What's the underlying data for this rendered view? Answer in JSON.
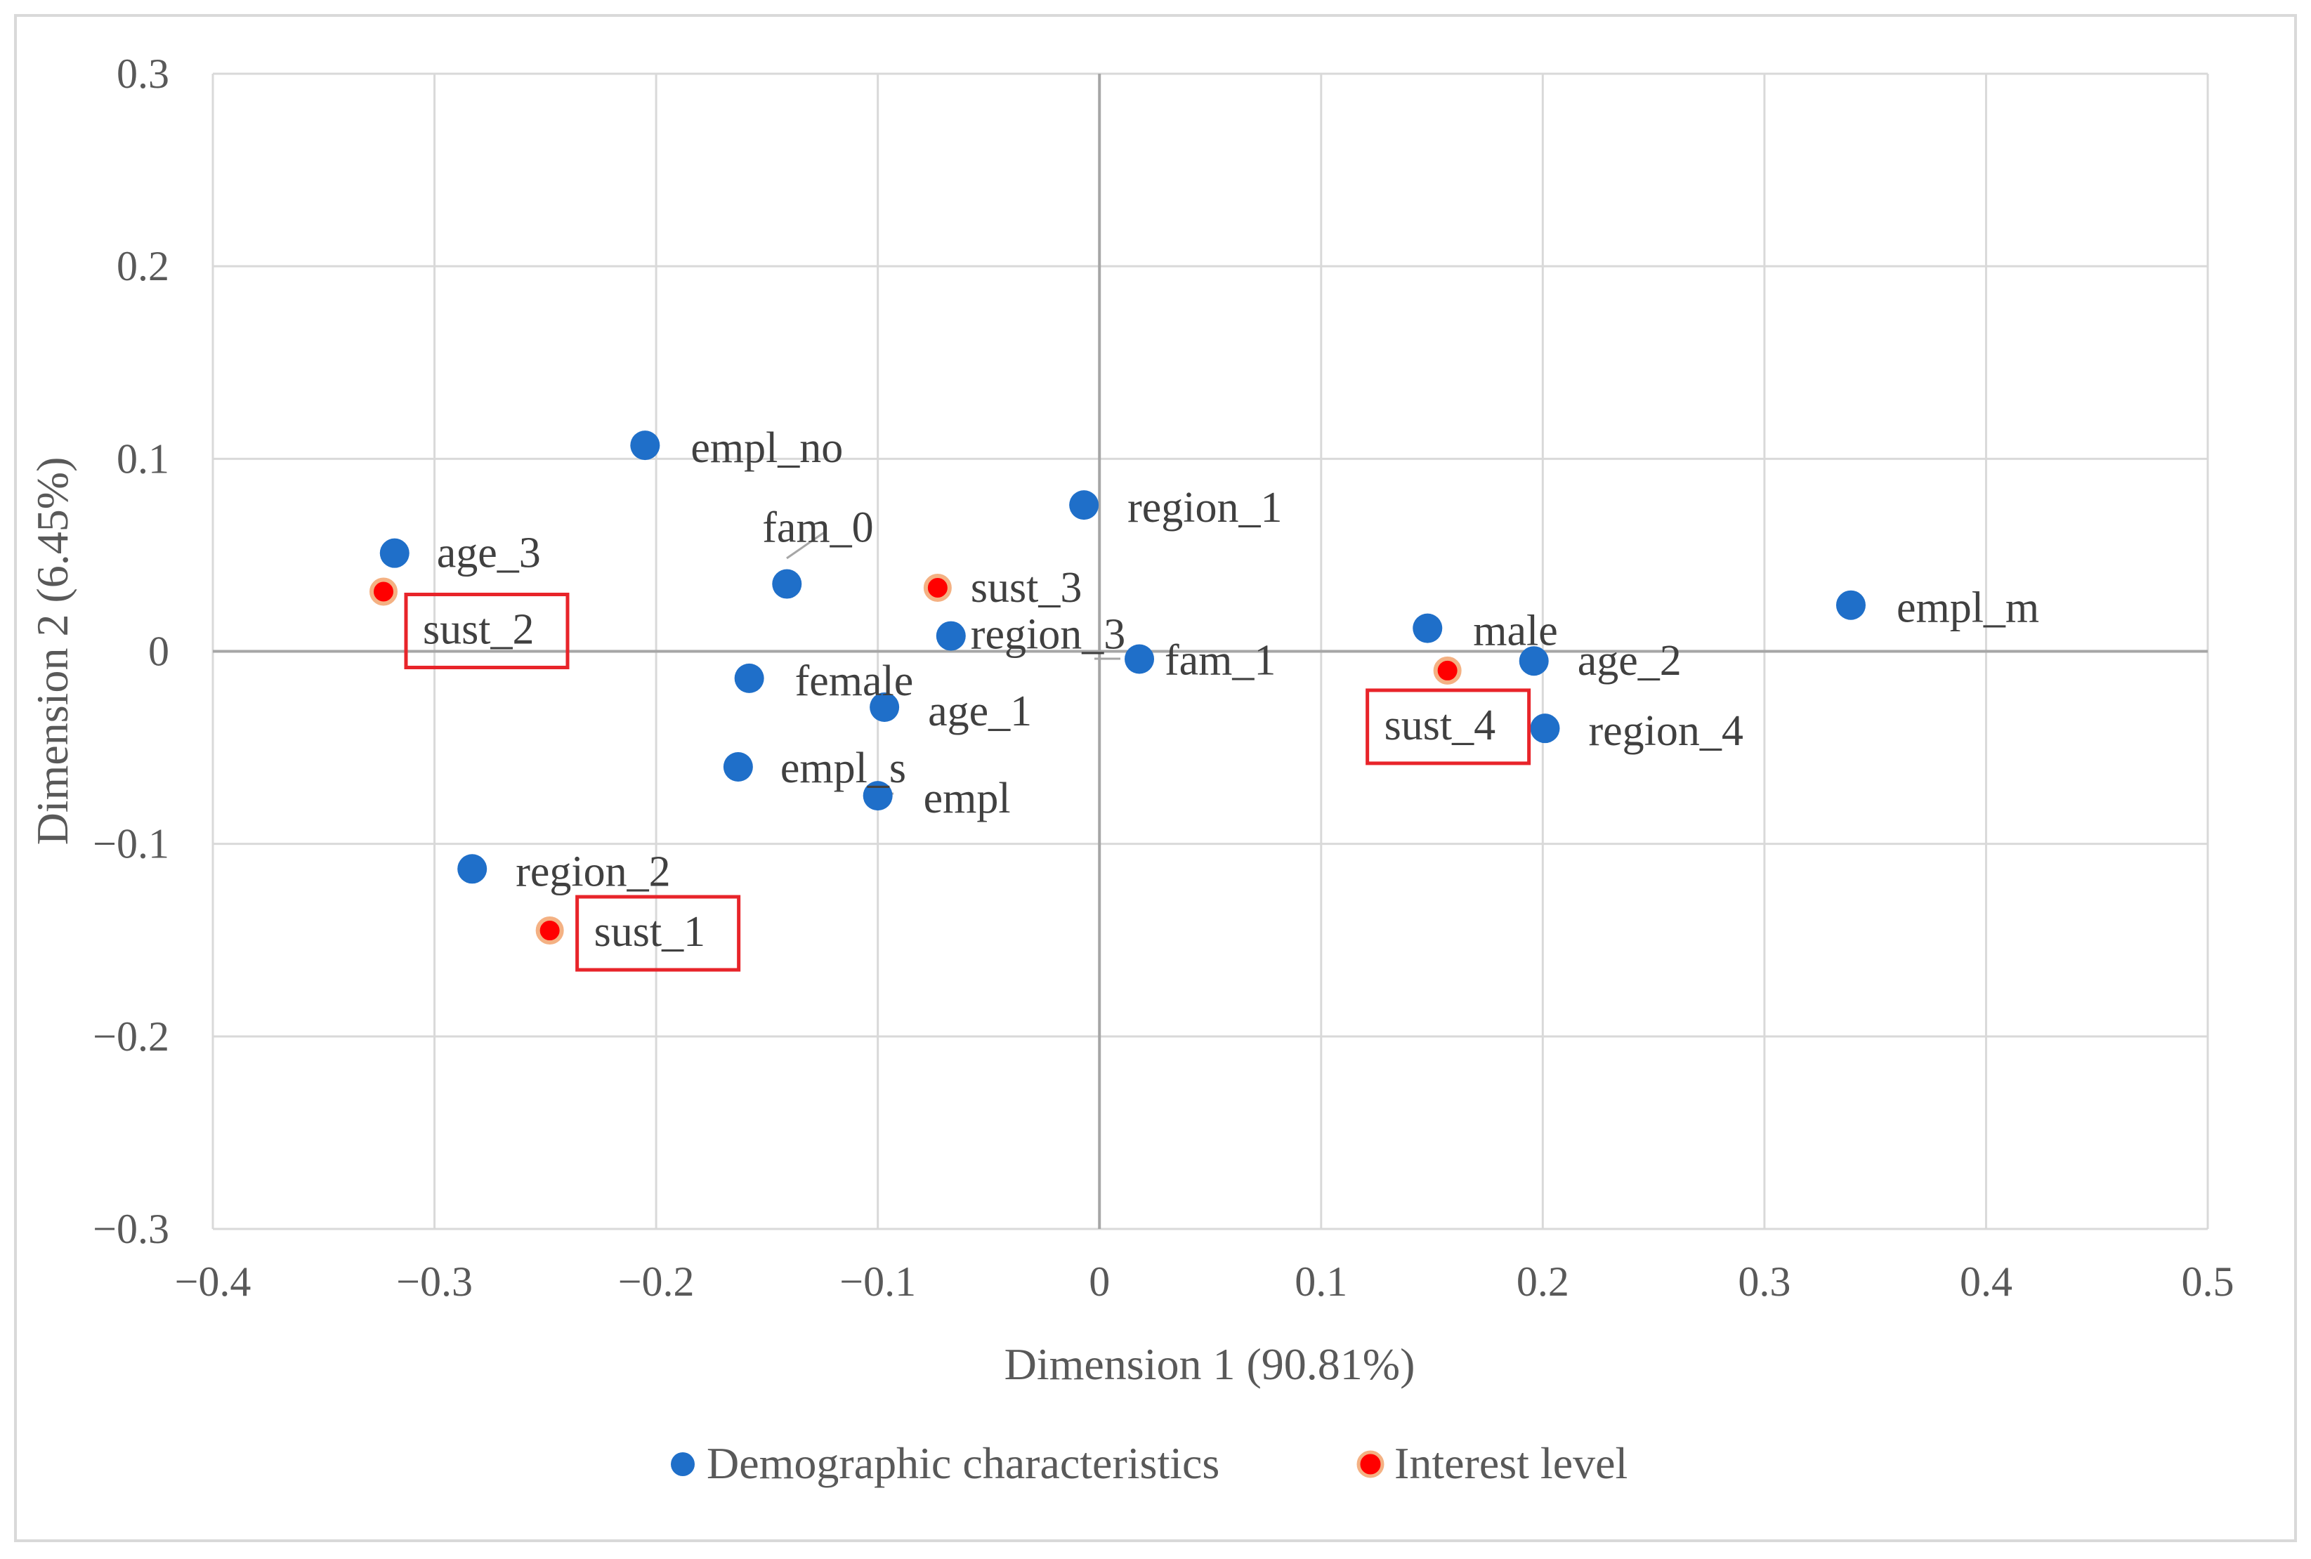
{
  "chart_data": {
    "type": "scatter",
    "title": "",
    "xlabel": "Dimension 1 (90.81%)",
    "ylabel": "Dimension 2 (6.45%)",
    "xlim": [
      -0.4,
      0.5
    ],
    "ylim": [
      -0.3,
      0.3
    ],
    "x_ticks": [
      -0.4,
      -0.3,
      -0.2,
      -0.1,
      0,
      0.1,
      0.2,
      0.3,
      0.4,
      0.5
    ],
    "y_ticks": [
      -0.3,
      -0.2,
      -0.1,
      0,
      0.1,
      0.2,
      0.3
    ],
    "x_tick_labels": [
      "−0.4",
      "−0.3",
      "−0.2",
      "−0.1",
      "0",
      "0.1",
      "0.2",
      "0.3",
      "0.4",
      "0.5"
    ],
    "y_tick_labels": [
      "−0.3",
      "−0.2",
      "−0.1",
      "0",
      "0.1",
      "0.2",
      "0.3"
    ],
    "grid": true,
    "legend_position": "bottom",
    "series": [
      {
        "name": "Demographic characteristics",
        "color": "#1f6fc9",
        "points": [
          {
            "label": "empl_no",
            "x": -0.205,
            "y": 0.107
          },
          {
            "label": "region_1",
            "x": -0.007,
            "y": 0.076
          },
          {
            "label": "fam_0",
            "x": -0.141,
            "y": 0.035
          },
          {
            "label": "age_3",
            "x": -0.318,
            "y": 0.051
          },
          {
            "label": "region_3",
            "x": -0.067,
            "y": 0.008
          },
          {
            "label": "fam_1",
            "x": 0.018,
            "y": -0.004
          },
          {
            "label": "female",
            "x": -0.158,
            "y": -0.014
          },
          {
            "label": "age_1",
            "x": -0.097,
            "y": -0.029
          },
          {
            "label": "empl_s",
            "x": -0.163,
            "y": -0.06
          },
          {
            "label": "empl",
            "x": -0.1,
            "y": -0.075
          },
          {
            "label": "region_2",
            "x": -0.283,
            "y": -0.113
          },
          {
            "label": "male",
            "x": 0.148,
            "y": 0.012
          },
          {
            "label": "age_2",
            "x": 0.196,
            "y": -0.005
          },
          {
            "label": "region_4",
            "x": 0.201,
            "y": -0.04
          },
          {
            "label": "empl_m",
            "x": 0.339,
            "y": 0.024
          }
        ]
      },
      {
        "name": "Interest level",
        "color": "#ff0000",
        "outline": "#f4b183",
        "points": [
          {
            "label": "sust_3",
            "x": -0.073,
            "y": 0.033
          },
          {
            "label": "sust_2",
            "x": -0.323,
            "y": 0.031
          },
          {
            "label": "sust_1",
            "x": -0.248,
            "y": -0.145
          },
          {
            "label": "sust_4",
            "x": 0.157,
            "y": -0.01
          }
        ]
      }
    ]
  }
}
